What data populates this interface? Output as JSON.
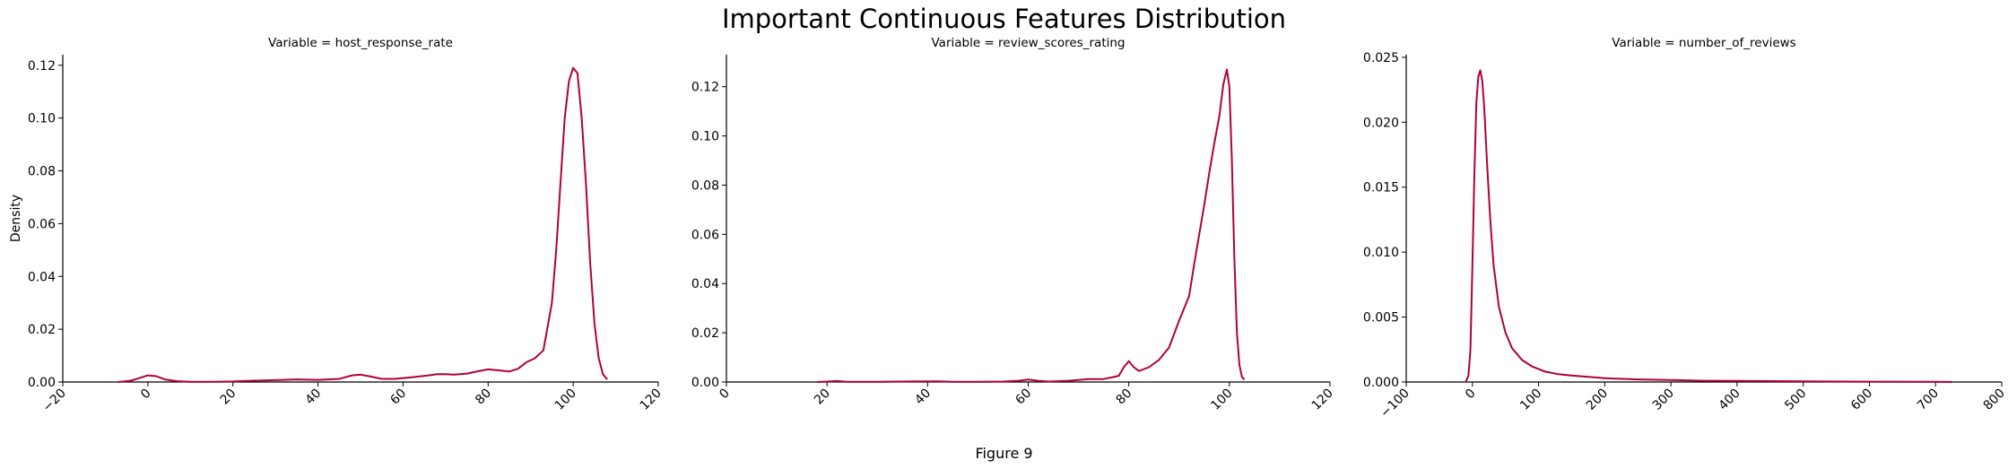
{
  "figure": {
    "title": "Important Continuous Features Distribution",
    "caption": "Figure 9",
    "line_color": "#b0003a"
  },
  "chart_data": [
    {
      "type": "line",
      "title": "Variable = host_response_rate",
      "xlabel": "",
      "ylabel": "Density",
      "xlim": [
        -20,
        120
      ],
      "ylim": [
        0,
        0.124
      ],
      "xticks": [
        -20,
        0,
        20,
        40,
        60,
        80,
        100,
        120
      ],
      "yticks": [
        0.0,
        0.02,
        0.04,
        0.06,
        0.08,
        0.1,
        0.12
      ],
      "ytick_decimals": 2,
      "series": [
        {
          "x": [
            -7,
            -4,
            -2,
            0,
            2,
            4,
            7,
            10,
            15,
            20,
            25,
            30,
            35,
            40,
            45,
            48,
            50,
            52,
            55,
            58,
            62,
            66,
            68,
            70,
            72,
            75,
            78,
            80,
            82,
            85,
            87,
            89,
            91,
            93,
            95,
            96,
            97,
            98,
            99,
            100,
            101,
            102,
            103,
            104,
            105,
            106,
            107,
            108
          ],
          "y": [
            0.0,
            0.0005,
            0.0015,
            0.0025,
            0.0022,
            0.001,
            0.0003,
            0.0001,
            0.0001,
            0.0002,
            0.0005,
            0.0007,
            0.001,
            0.0008,
            0.0012,
            0.0025,
            0.0028,
            0.0022,
            0.0012,
            0.0012,
            0.0018,
            0.0025,
            0.003,
            0.003,
            0.0028,
            0.0032,
            0.0042,
            0.0048,
            0.0045,
            0.004,
            0.005,
            0.0075,
            0.009,
            0.012,
            0.03,
            0.05,
            0.075,
            0.1,
            0.114,
            0.119,
            0.117,
            0.1,
            0.075,
            0.045,
            0.022,
            0.009,
            0.003,
            0.001
          ]
        }
      ]
    },
    {
      "type": "line",
      "title": "Variable = review_scores_rating",
      "xlabel": "",
      "ylabel": "",
      "xlim": [
        0,
        120
      ],
      "ylim": [
        0,
        0.133
      ],
      "xticks": [
        0,
        20,
        40,
        60,
        80,
        100,
        120
      ],
      "yticks": [
        0.0,
        0.02,
        0.04,
        0.06,
        0.08,
        0.1,
        0.12
      ],
      "ytick_decimals": 2,
      "series": [
        {
          "x": [
            18,
            20,
            22,
            24,
            30,
            40,
            42,
            45,
            50,
            55,
            58,
            60,
            62,
            64,
            68,
            72,
            75,
            78,
            79,
            80,
            81,
            82,
            84,
            86,
            88,
            90,
            91,
            92,
            93,
            94,
            95,
            96,
            97,
            98,
            98.8,
            99.5,
            100,
            100.5,
            101,
            101.5,
            102,
            102.5,
            103
          ],
          "y": [
            0.0,
            0.0002,
            0.0004,
            0.0001,
            0.0001,
            0.0003,
            0.0003,
            0.0001,
            0.0001,
            0.0002,
            0.0005,
            0.001,
            0.0005,
            0.0002,
            0.0005,
            0.0012,
            0.0012,
            0.0025,
            0.006,
            0.0085,
            0.006,
            0.0045,
            0.006,
            0.009,
            0.014,
            0.025,
            0.03,
            0.035,
            0.048,
            0.06,
            0.072,
            0.085,
            0.097,
            0.108,
            0.121,
            0.127,
            0.12,
            0.09,
            0.05,
            0.02,
            0.007,
            0.002,
            0.001
          ]
        }
      ]
    },
    {
      "type": "line",
      "title": "Variable = number_of_reviews",
      "xlabel": "",
      "ylabel": "",
      "xlim": [
        -100,
        800
      ],
      "ylim": [
        0,
        0.0252
      ],
      "xticks": [
        -100,
        0,
        100,
        200,
        300,
        400,
        500,
        600,
        700,
        800
      ],
      "yticks": [
        0.0,
        0.005,
        0.01,
        0.015,
        0.02,
        0.025
      ],
      "ytick_decimals": 3,
      "series": [
        {
          "x": [
            -10,
            -6,
            -3,
            0,
            3,
            6,
            9,
            12,
            15,
            18,
            22,
            27,
            32,
            40,
            50,
            60,
            75,
            90,
            110,
            130,
            150,
            175,
            200,
            250,
            300,
            350,
            400,
            500,
            600,
            700,
            725
          ],
          "y": [
            0.0,
            0.0005,
            0.0025,
            0.009,
            0.016,
            0.0215,
            0.0235,
            0.024,
            0.0232,
            0.021,
            0.017,
            0.0125,
            0.009,
            0.0058,
            0.0038,
            0.0026,
            0.0017,
            0.0012,
            0.0008,
            0.0006,
            0.0005,
            0.0004,
            0.0003,
            0.0002,
            0.00015,
            0.0001,
            8e-05,
            5e-05,
            3e-05,
            2e-05,
            0.0
          ]
        }
      ]
    }
  ]
}
